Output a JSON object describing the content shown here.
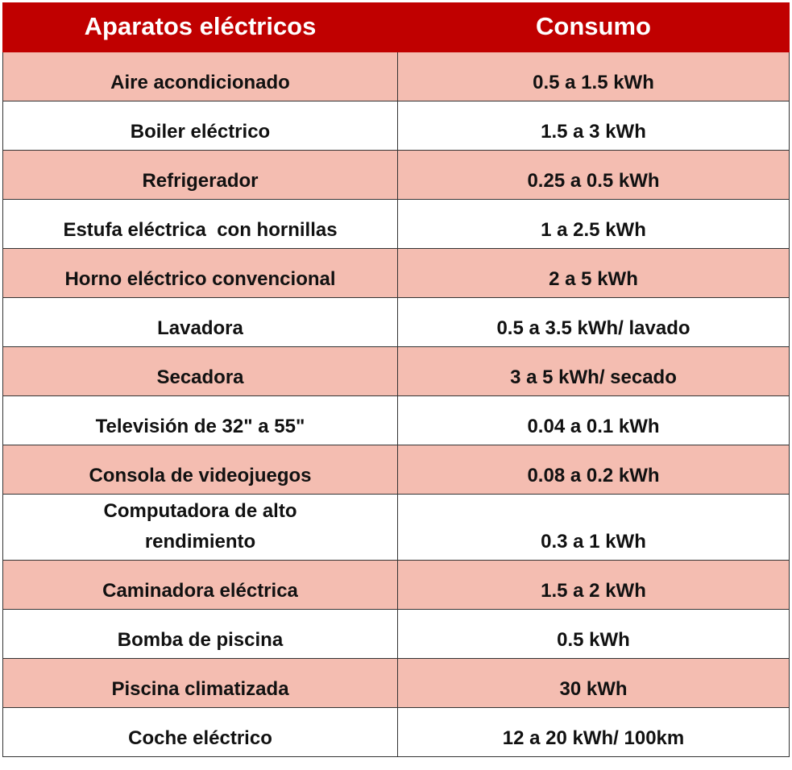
{
  "table": {
    "header": [
      "Aparatos eléctricos",
      "Consumo"
    ],
    "rows": [
      [
        "Aire acondicionado",
        "0.5 a 1.5 kWh"
      ],
      [
        "Boiler eléctrico",
        "1.5 a 3 kWh"
      ],
      [
        "Refrigerador",
        "0.25 a 0.5 kWh"
      ],
      [
        "Estufa eléctrica  con hornillas",
        "1 a 2.5 kWh"
      ],
      [
        "Horno eléctrico convencional",
        "2 a 5 kWh"
      ],
      [
        "Lavadora",
        "0.5 a 3.5 kWh/ lavado"
      ],
      [
        "Secadora",
        "3 a 5 kWh/ secado"
      ],
      [
        "Televisión de 32\" a 55\"",
        "0.04 a 0.1 kWh"
      ],
      [
        "Consola de videojuegos",
        "0.08 a 0.2 kWh"
      ],
      [
        "Computadora de alto rendimiento",
        "0.3 a 1 kWh"
      ],
      [
        "Caminadora eléctrica",
        "1.5 a 2 kWh"
      ],
      [
        "Bomba de piscina",
        "0.5 kWh"
      ],
      [
        "Piscina climatizada",
        "30 kWh"
      ],
      [
        "Coche eléctrico",
        "12 a 20 kWh/ 100km"
      ]
    ]
  }
}
